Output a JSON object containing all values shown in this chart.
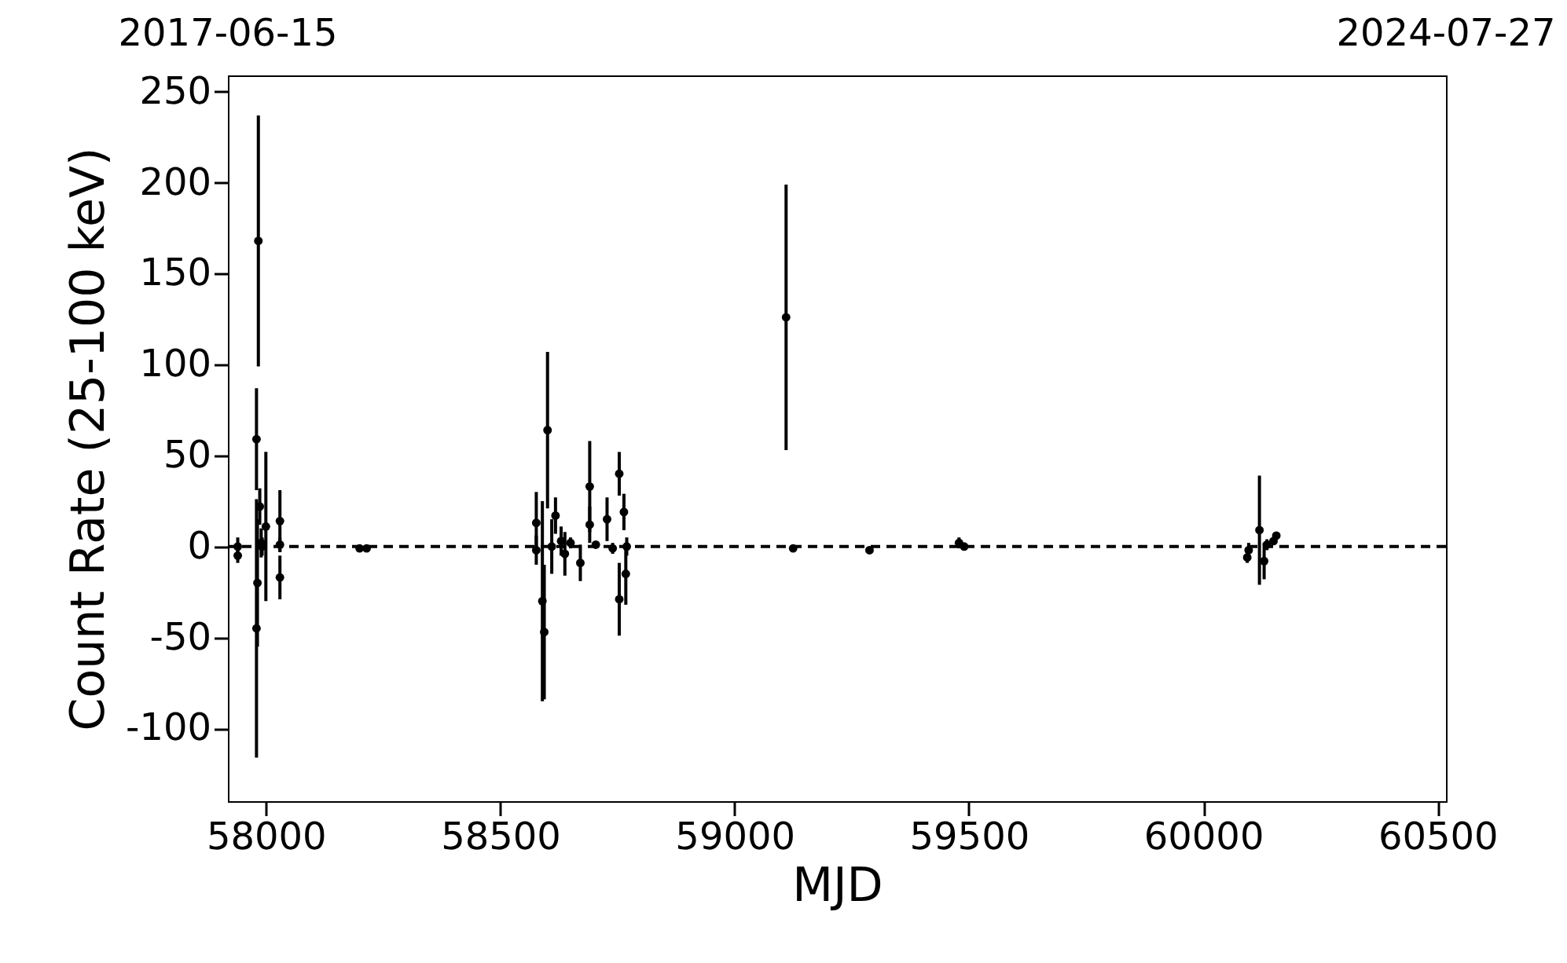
{
  "chart_data": {
    "type": "scatter",
    "xlabel": "MJD",
    "ylabel": "Count Rate (25-100 keV)",
    "x": [
      57940,
      57940,
      57980,
      57980,
      57982,
      57984,
      57987,
      57990,
      57992,
      58000,
      58030,
      58030,
      58030,
      58200,
      58215,
      58577,
      58577,
      58590,
      58594,
      58601,
      58610,
      58618,
      58630,
      58638,
      58650,
      58671,
      58691,
      58691,
      58704,
      58728,
      58740,
      58754,
      58754,
      58764,
      58768,
      58770,
      59110,
      59125,
      59288,
      59479,
      59490,
      60094,
      60097,
      60120,
      60130,
      60136,
      60150,
      60156
    ],
    "values": [
      0,
      -5,
      59,
      -45,
      -20,
      168,
      22,
      2,
      0,
      11,
      14,
      -17,
      1,
      -1,
      -1,
      13,
      -2,
      -30,
      -47,
      64,
      0,
      17,
      3,
      -4,
      2,
      -9,
      33,
      12,
      1,
      15,
      -1,
      40,
      -29,
      19,
      -15,
      0,
      126,
      -1,
      -2,
      2,
      0,
      -6,
      -2,
      9,
      -8,
      1,
      3,
      6
    ],
    "errors": [
      5,
      4,
      28,
      71,
      35,
      69,
      10,
      8,
      5,
      41,
      17,
      12,
      4,
      2,
      2,
      17,
      8,
      55,
      37,
      43,
      15,
      10,
      8,
      12,
      3,
      10,
      25,
      10,
      2,
      12,
      3,
      12,
      20,
      10,
      17,
      5,
      73,
      2,
      2,
      3,
      2,
      3,
      4,
      30,
      10,
      3,
      2,
      2
    ],
    "color": "#000000",
    "marker": "circle",
    "grid": false,
    "xlim": [
      57919,
      60518
    ],
    "xticks": [
      58000,
      58500,
      59000,
      59500,
      60000,
      60500
    ],
    "ylim": [
      -140,
      259
    ],
    "yticks": [
      -100,
      -50,
      0,
      50,
      100,
      150,
      200,
      250
    ],
    "annotations": [
      "2017-06-15",
      "2024-07-27"
    ],
    "ref_lines": [
      {
        "axis": "y",
        "value": 0,
        "label": null,
        "color": "#000000",
        "line_style": "dashed"
      }
    ]
  }
}
